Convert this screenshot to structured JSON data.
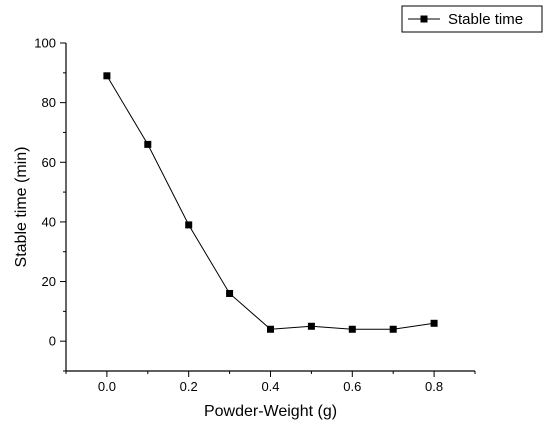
{
  "chart_data": {
    "type": "line",
    "x": [
      0.0,
      0.1,
      0.2,
      0.3,
      0.4,
      0.5,
      0.6,
      0.7,
      0.8
    ],
    "series": [
      {
        "name": "Stable time",
        "values": [
          89,
          66,
          39,
          16,
          4,
          5,
          4,
          4,
          6
        ],
        "marker": "square",
        "color": "#000000"
      }
    ],
    "xlabel": "Powder-Weight (g)",
    "ylabel": "Stable time (min)",
    "xlim": [
      -0.1,
      0.9
    ],
    "ylim": [
      -10,
      100
    ],
    "xticks": [
      0.0,
      0.2,
      0.4,
      0.6,
      0.8
    ],
    "xtick_labels": [
      "0.0",
      "0.2",
      "0.4",
      "0.6",
      "0.8"
    ],
    "yticks": [
      0,
      20,
      40,
      60,
      80,
      100
    ],
    "ytick_labels": [
      "0",
      "20",
      "40",
      "60",
      "80",
      "100"
    ],
    "grid": false,
    "legend_position": "top-right"
  }
}
